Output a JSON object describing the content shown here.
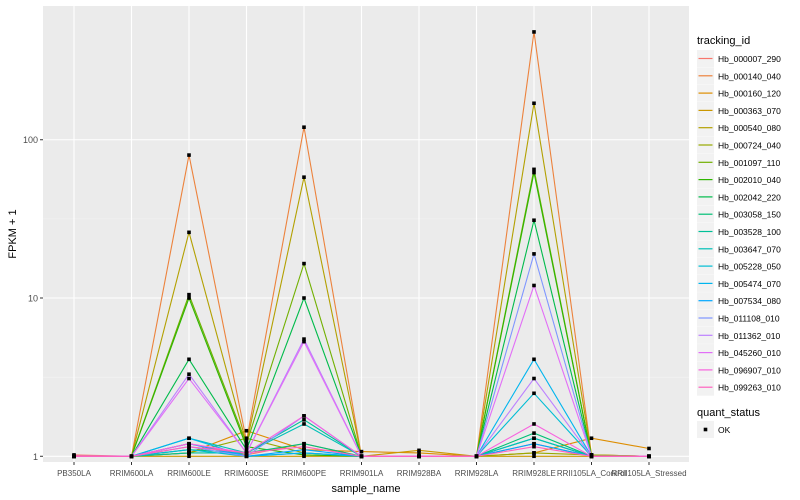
{
  "chart_data": {
    "type": "line",
    "xlabel": "sample_name",
    "ylabel": "FPKM + 1",
    "y_scale": "log10",
    "ylim": [
      0.92,
      700
    ],
    "y_ticks": [
      1,
      10,
      100
    ],
    "y_tick_labels": [
      "1",
      "10",
      "100"
    ],
    "grid": true,
    "legend_position": "right",
    "categories": [
      "PB350LA",
      "RRIM600LA",
      "RRIM600LE",
      "RRIM600SE",
      "RRIM600PE",
      "RRIM901LA",
      "RRIM928BA",
      "RRIM928LA",
      "RRIM928LE",
      "RRII105LA_Control",
      "RRII105LA_Stressed"
    ],
    "x_tick_labels": [
      "PB350LA",
      "RRIM600LA",
      "RRIM600LE",
      "RRIM600SE",
      "RRIM600PE",
      "RRIM901LA",
      "RRIM928BA",
      "RRIM928LA",
      "RRIM928LE",
      "RRII105LA_Control",
      "RRII105LA_Stressed"
    ],
    "legend_title": "tracking_id",
    "series": [
      {
        "name": "Hb_000007_290",
        "color": "#F8766D",
        "values": [
          1.02,
          1,
          1.2,
          1.02,
          1.2,
          1,
          1,
          1,
          1.2,
          1,
          1
        ]
      },
      {
        "name": "Hb_000140_040",
        "color": "#EC823C",
        "values": [
          1,
          1,
          80,
          1.25,
          120,
          1,
          1,
          1,
          480,
          1.02,
          1
        ]
      },
      {
        "name": "Hb_000160_120",
        "color": "#DD8D00",
        "values": [
          1,
          1,
          1.05,
          1.45,
          1.1,
          1.07,
          1.05,
          1,
          1.05,
          1.3,
          1.12
        ]
      },
      {
        "name": "Hb_000363_070",
        "color": "#CA9700",
        "values": [
          1,
          1,
          1,
          1,
          1,
          1,
          1.09,
          1,
          1,
          1,
          1
        ]
      },
      {
        "name": "Hb_000540_080",
        "color": "#B3A000",
        "values": [
          1,
          1,
          26,
          1.2,
          58,
          1,
          1,
          1,
          170,
          1.02,
          1
        ]
      },
      {
        "name": "Hb_000724_040",
        "color": "#97A900",
        "values": [
          1,
          1,
          1.05,
          1.3,
          1.05,
          1,
          1,
          1,
          1.05,
          1.02,
          1
        ]
      },
      {
        "name": "Hb_001097_110",
        "color": "#71B000",
        "values": [
          1,
          1,
          10.5,
          1.2,
          16.5,
          1,
          1,
          1,
          65,
          1,
          1
        ]
      },
      {
        "name": "Hb_002010_040",
        "color": "#2FB600",
        "values": [
          1,
          1,
          10,
          1.15,
          1.02,
          1,
          1,
          1,
          62,
          1,
          1
        ]
      },
      {
        "name": "Hb_002042_220",
        "color": "#00BB4B",
        "values": [
          1,
          1,
          4.1,
          1.1,
          10,
          1,
          1,
          1,
          31,
          1,
          1
        ]
      },
      {
        "name": "Hb_003058_150",
        "color": "#00BF76",
        "values": [
          1,
          1,
          1.1,
          1.05,
          1.2,
          1,
          1,
          1,
          1.4,
          1,
          1
        ]
      },
      {
        "name": "Hb_003528_100",
        "color": "#00C098",
        "values": [
          1,
          1,
          1.05,
          1.05,
          1.7,
          1,
          1,
          1,
          1.3,
          1,
          1
        ]
      },
      {
        "name": "Hb_003647_070",
        "color": "#00C0B7",
        "values": [
          1,
          1,
          1.3,
          1.05,
          1.6,
          1,
          1,
          1,
          1.3,
          1,
          1
        ]
      },
      {
        "name": "Hb_005228_050",
        "color": "#00BDD4",
        "values": [
          1,
          1,
          1.1,
          1,
          1.05,
          1,
          1,
          1,
          2.5,
          1,
          1
        ]
      },
      {
        "name": "Hb_005474_070",
        "color": "#00B5EE",
        "values": [
          1,
          1,
          1.3,
          1,
          1.05,
          1,
          1,
          1,
          4.1,
          1,
          1
        ]
      },
      {
        "name": "Hb_007534_080",
        "color": "#00A7FF",
        "values": [
          1,
          1,
          1.2,
          1,
          1.1,
          1,
          1,
          1,
          1.2,
          1,
          1
        ]
      },
      {
        "name": "Hb_011108_010",
        "color": "#7F96FF",
        "values": [
          1,
          1,
          1.15,
          1,
          1.8,
          1,
          1,
          1,
          19,
          1,
          1
        ]
      },
      {
        "name": "Hb_011362_010",
        "color": "#BC81FF",
        "values": [
          1,
          1,
          3.3,
          1.05,
          5.5,
          1,
          1,
          1,
          3.1,
          1,
          1
        ]
      },
      {
        "name": "Hb_045260_010",
        "color": "#E26EF7",
        "values": [
          1,
          1,
          3.1,
          1.05,
          5.3,
          1,
          1,
          1,
          12,
          1,
          1
        ]
      },
      {
        "name": "Hb_096907_010",
        "color": "#F863DF",
        "values": [
          1,
          1,
          1.2,
          1.05,
          1.8,
          1,
          1,
          1,
          1.6,
          1,
          1
        ]
      },
      {
        "name": "Hb_099263_010",
        "color": "#FF62BF",
        "values": [
          1,
          1,
          1.15,
          1.05,
          1.15,
          1,
          1,
          1,
          1.15,
          1,
          1
        ]
      }
    ],
    "legend2_title": "quant_status",
    "legend2_items": [
      "OK"
    ]
  }
}
